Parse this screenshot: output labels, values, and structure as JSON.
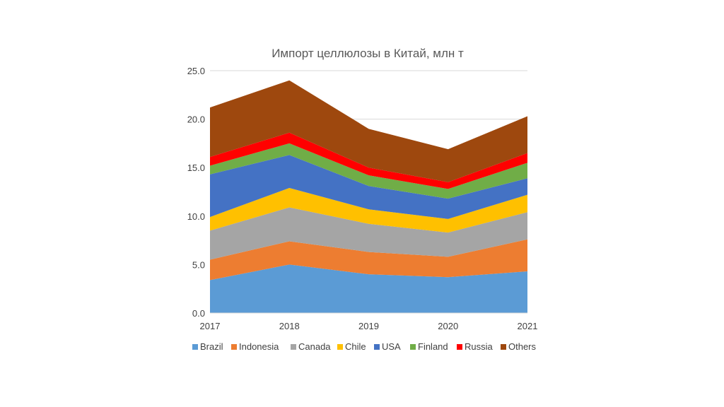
{
  "chart_data": {
    "type": "area",
    "stacked": true,
    "title": "Импорт целлюлозы в Китай, млн т",
    "xlabel": "",
    "ylabel": "",
    "x": [
      "2017",
      "2018",
      "2019",
      "2020",
      "2021"
    ],
    "ylim": [
      0,
      25
    ],
    "yticks": [
      "0.0",
      "5.0",
      "10.0",
      "15.0",
      "20.0",
      "25.0"
    ],
    "grid": true,
    "legend_position": "bottom",
    "series": [
      {
        "name": "Brazil",
        "color": "#5B9BD5",
        "values": [
          3.4,
          5.0,
          4.0,
          3.7,
          4.3
        ]
      },
      {
        "name": "Indonesia",
        "color": "#ED7D31",
        "values": [
          2.1,
          2.4,
          2.3,
          2.1,
          3.3
        ]
      },
      {
        "name": "Canada",
        "color": "#A5A5A5",
        "values": [
          3.0,
          3.5,
          2.9,
          2.5,
          2.8
        ]
      },
      {
        "name": "Chile",
        "color": "#FFC000",
        "values": [
          1.4,
          2.0,
          1.5,
          1.4,
          1.8
        ]
      },
      {
        "name": "USA",
        "color": "#4472C4",
        "values": [
          4.4,
          3.4,
          2.4,
          2.1,
          1.7
        ]
      },
      {
        "name": "Finland",
        "color": "#70AD47",
        "values": [
          0.9,
          1.2,
          1.1,
          1.0,
          1.6
        ]
      },
      {
        "name": "Russia",
        "color": "#FF0000",
        "values": [
          0.9,
          1.1,
          0.8,
          0.7,
          1.0
        ]
      },
      {
        "name": "Others",
        "color": "#9E480E",
        "values": [
          5.1,
          5.4,
          4.0,
          3.4,
          3.8
        ]
      }
    ]
  }
}
